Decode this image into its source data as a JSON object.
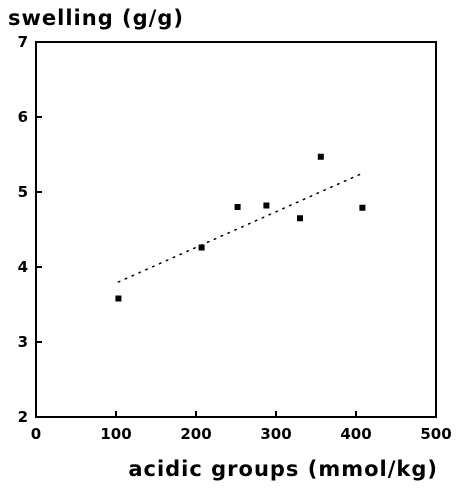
{
  "chart_data": {
    "type": "scatter",
    "title": "",
    "ylabel": "swelling (g/g)",
    "xlabel": "acidic groups (mmol/kg)",
    "xlim": [
      0,
      500
    ],
    "ylim": [
      2,
      7
    ],
    "x_ticks": [
      0,
      100,
      200,
      300,
      400,
      500
    ],
    "y_ticks": [
      2,
      3,
      4,
      5,
      6,
      7
    ],
    "grid": false,
    "series": [
      {
        "marker": "square",
        "color": "#000000",
        "points": [
          {
            "x": 103,
            "y": 3.58
          },
          {
            "x": 207,
            "y": 4.26
          },
          {
            "x": 252,
            "y": 4.8
          },
          {
            "x": 288,
            "y": 4.82
          },
          {
            "x": 330,
            "y": 4.65
          },
          {
            "x": 356,
            "y": 5.47
          },
          {
            "x": 408,
            "y": 4.79
          }
        ]
      }
    ],
    "trendline": {
      "style": "dotted",
      "from": {
        "x": 103,
        "y": 3.8
      },
      "to": {
        "x": 408,
        "y": 5.25
      }
    }
  }
}
